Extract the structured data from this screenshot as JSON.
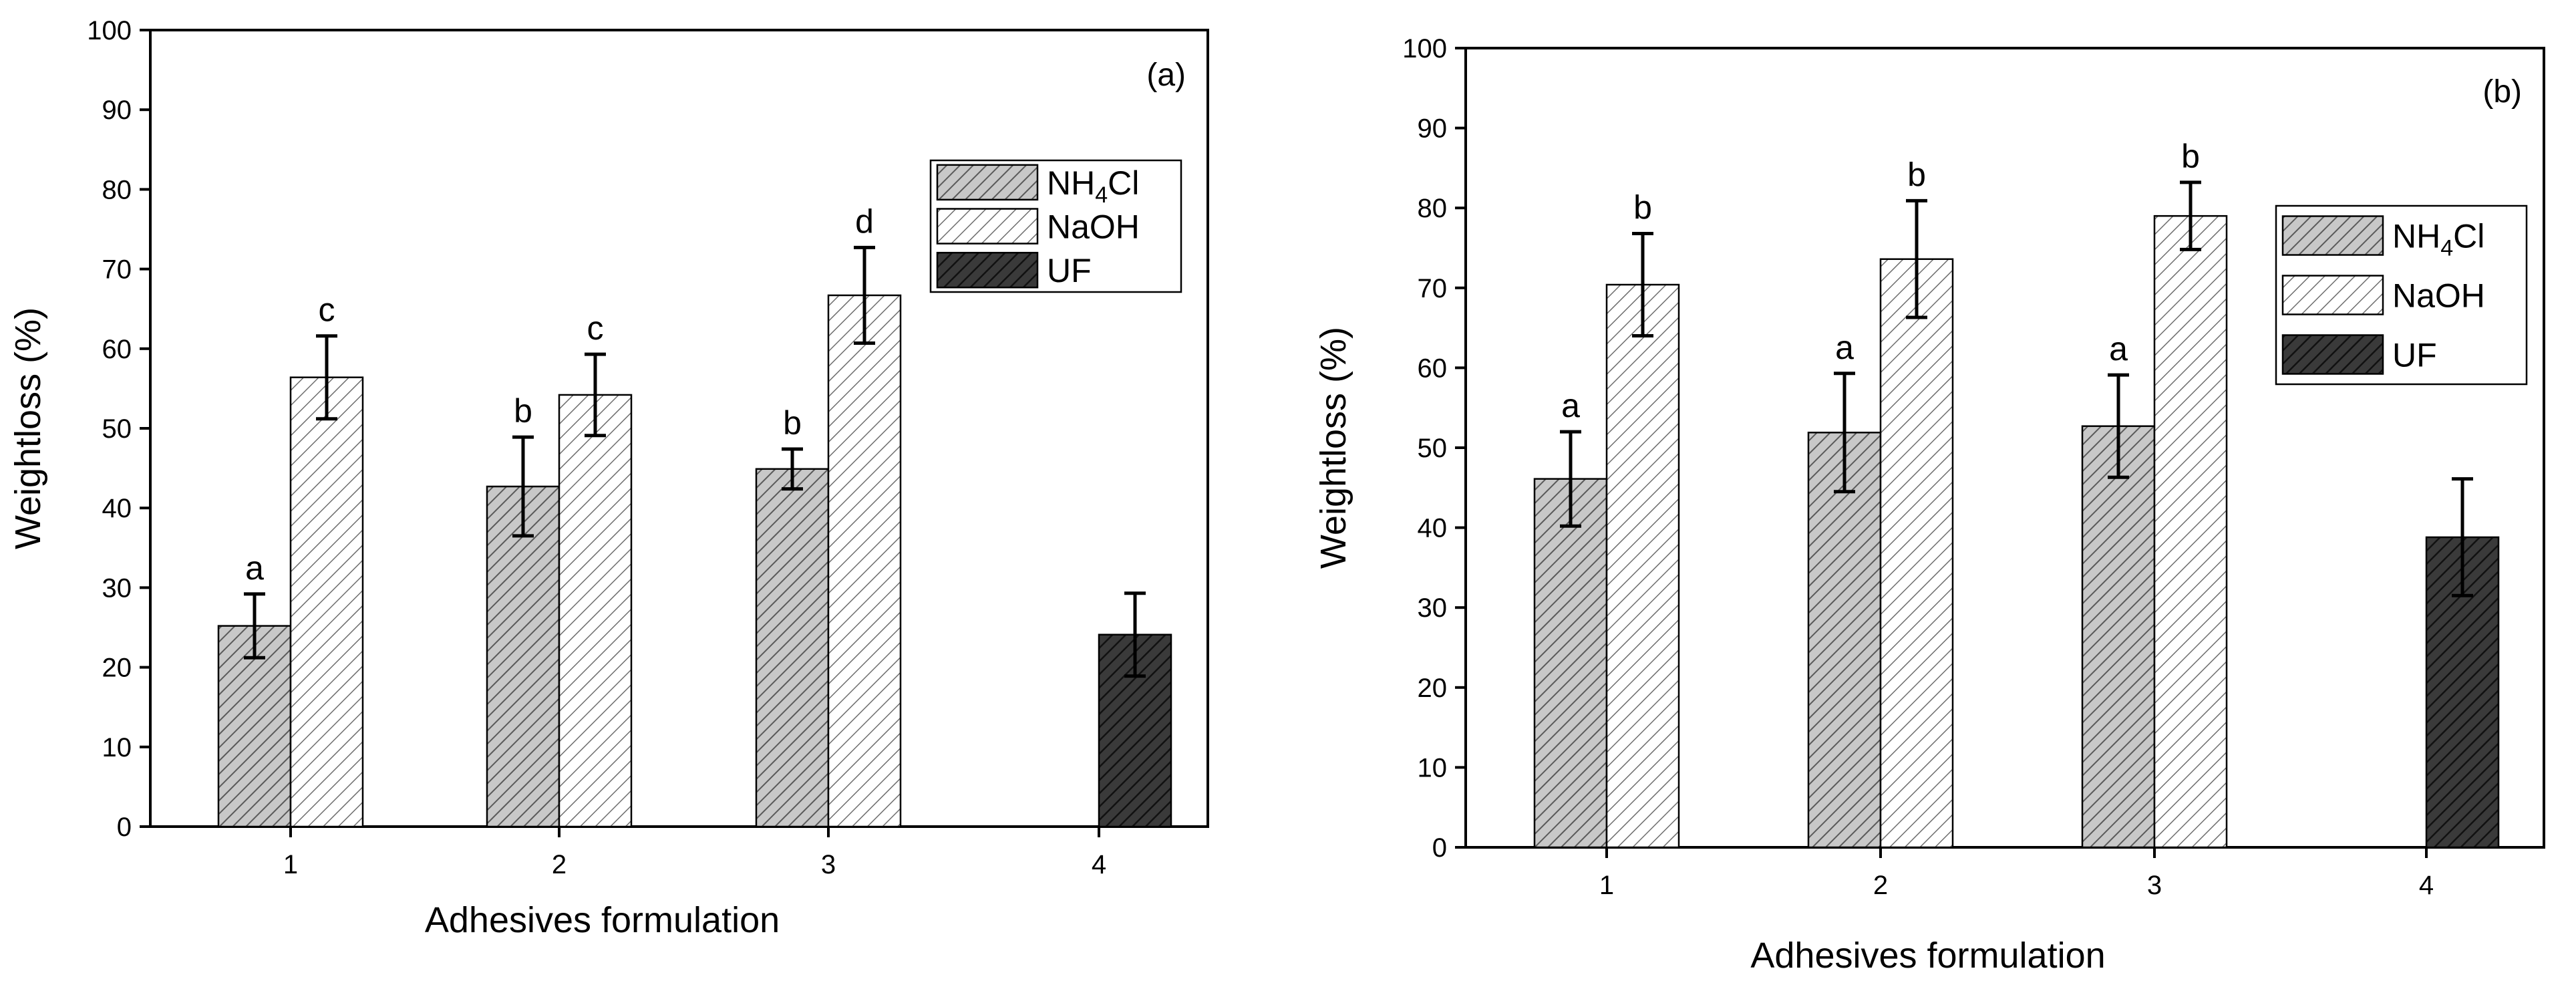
{
  "figure": {
    "description_panels": [
      "a",
      "b"
    ]
  },
  "chart_data": [
    {
      "type": "bar",
      "panel_label": "(a)",
      "title": "",
      "xlabel": "Adhesives formulation",
      "ylabel": "Weightloss (%)",
      "ylim": [
        0,
        100
      ],
      "yticks": [
        0,
        10,
        20,
        30,
        40,
        50,
        60,
        70,
        80,
        90,
        100
      ],
      "categories": [
        "1",
        "2",
        "3",
        "4"
      ],
      "legend_position": "top-right",
      "series": [
        {
          "name": "NH4Cl",
          "name_main": "NH",
          "name_sub": "4",
          "name_tail": "Cl",
          "pattern": "hatch-dense-gray",
          "values": [
            25.2,
            42.7,
            44.9,
            null
          ],
          "errors": [
            4.0,
            6.2,
            2.5,
            null
          ],
          "labels": [
            "a",
            "b",
            "b",
            null
          ]
        },
        {
          "name": "NaOH",
          "pattern": "hatch-light",
          "values": [
            56.4,
            54.2,
            66.7,
            null
          ],
          "errors": [
            5.2,
            5.1,
            6.0,
            null
          ],
          "labels": [
            "c",
            "c",
            "d",
            null
          ]
        },
        {
          "name": "UF",
          "pattern": "hatch-dark",
          "values": [
            null,
            null,
            null,
            24.1
          ],
          "errors": [
            null,
            null,
            null,
            5.2
          ],
          "labels": [
            null,
            null,
            null,
            null
          ]
        }
      ]
    },
    {
      "type": "bar",
      "panel_label": "(b)",
      "title": "",
      "xlabel": "Adhesives formulation",
      "ylabel": "Weightloss (%)",
      "ylim": [
        0,
        100
      ],
      "yticks": [
        0,
        10,
        20,
        30,
        40,
        50,
        60,
        70,
        80,
        90,
        100
      ],
      "categories": [
        "1",
        "2",
        "3",
        "4"
      ],
      "legend_position": "top-right",
      "series": [
        {
          "name": "NH4Cl",
          "name_main": "NH",
          "name_sub": "4",
          "name_tail": "Cl",
          "pattern": "hatch-dense-gray",
          "values": [
            46.1,
            51.9,
            52.7,
            null
          ],
          "errors": [
            5.9,
            7.4,
            6.4,
            null
          ],
          "labels": [
            "a",
            "a",
            "a",
            null
          ]
        },
        {
          "name": "NaOH",
          "pattern": "hatch-light",
          "values": [
            70.4,
            73.6,
            79.0,
            null
          ],
          "errors": [
            6.4,
            7.3,
            4.2,
            null
          ],
          "labels": [
            "b",
            "b",
            "b",
            null
          ]
        },
        {
          "name": "UF",
          "pattern": "hatch-dark",
          "values": [
            null,
            null,
            null,
            38.8
          ],
          "errors": [
            null,
            null,
            null,
            7.3
          ],
          "labels": [
            null,
            null,
            null,
            null
          ]
        }
      ]
    }
  ]
}
